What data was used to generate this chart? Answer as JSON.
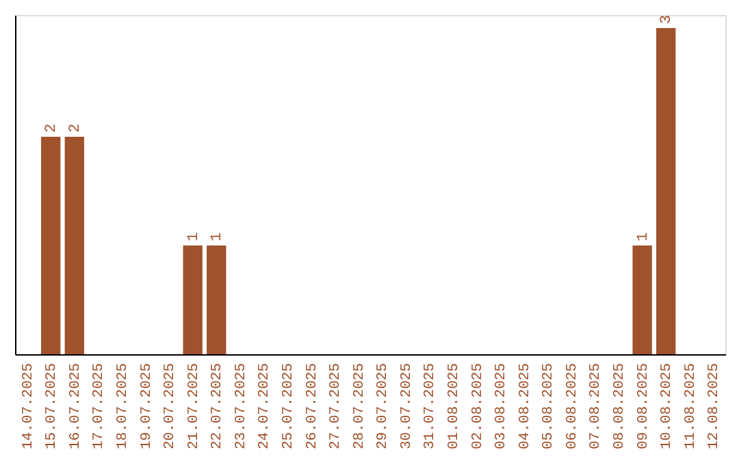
{
  "chart_data": {
    "type": "bar",
    "categories": [
      "14.07.2025",
      "15.07.2025",
      "16.07.2025",
      "17.07.2025",
      "18.07.2025",
      "19.07.2025",
      "20.07.2025",
      "21.07.2025",
      "22.07.2025",
      "23.07.2025",
      "24.07.2025",
      "25.07.2025",
      "26.07.2025",
      "27.07.2025",
      "28.07.2025",
      "29.07.2025",
      "30.07.2025",
      "31.07.2025",
      "01.08.2025",
      "02.08.2025",
      "03.08.2025",
      "04.08.2025",
      "05.08.2025",
      "06.08.2025",
      "07.08.2025",
      "08.08.2025",
      "09.08.2025",
      "10.08.2025",
      "11.08.2025",
      "12.08.2025"
    ],
    "values": [
      0,
      2,
      2,
      0,
      0,
      0,
      0,
      1,
      1,
      0,
      0,
      0,
      0,
      0,
      0,
      0,
      0,
      0,
      0,
      0,
      0,
      0,
      0,
      0,
      0,
      0,
      1,
      3,
      0,
      0
    ],
    "value_labels": [
      null,
      "2",
      "2",
      null,
      null,
      null,
      null,
      "1",
      "1",
      null,
      null,
      null,
      null,
      null,
      null,
      null,
      null,
      null,
      null,
      null,
      null,
      null,
      null,
      null,
      null,
      null,
      "1",
      "3",
      null,
      null
    ],
    "color": "#a0522d",
    "ylim": [
      0,
      3.12
    ],
    "tick_labels": "x",
    "grid": false
  }
}
